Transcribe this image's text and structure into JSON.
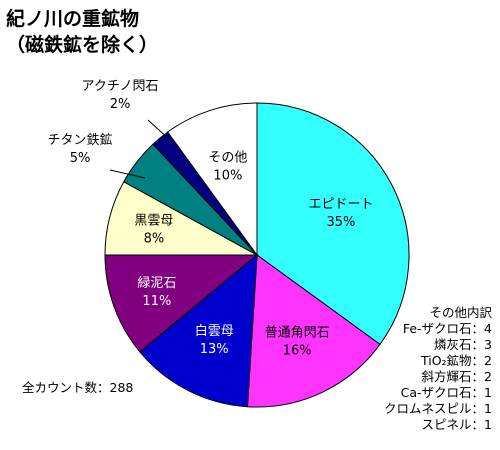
{
  "title_lines": [
    "紀ノ川の重鉱物",
    "（磁鉄鉱を除く）"
  ],
  "chart_data": {
    "type": "pie",
    "title": "紀ノ川の重鉱物（磁鉄鉱を除く）",
    "slices": [
      {
        "label": "エピドート",
        "value": 35,
        "display": "35%",
        "color": "#33ffff"
      },
      {
        "label": "普通角閃石",
        "value": 16,
        "display": "16%",
        "color": "#ff33ff"
      },
      {
        "label": "白雲母",
        "value": 13,
        "display": "13%",
        "color": "#0000cc"
      },
      {
        "label": "緑泥石",
        "value": 11,
        "display": "11%",
        "color": "#800080"
      },
      {
        "label": "黒雲母",
        "value": 8,
        "display": "8%",
        "color": "#ffffcc"
      },
      {
        "label": "チタン鉄鉱",
        "value": 5,
        "display": "5%",
        "color": "#008080"
      },
      {
        "label": "アクチノ閃石",
        "value": 2,
        "display": "2%",
        "color": "#000080"
      },
      {
        "label": "その他",
        "value": 10,
        "display": "10%",
        "color": "#ffffff"
      }
    ]
  },
  "breakdown": {
    "title": "その他内訳",
    "items": [
      "Fe-ザクロ石：4",
      "燐灰石：3",
      "TiO₂鉱物：2",
      "斜方輝石：2",
      "Ca-ザクロ石：1",
      "クロムネスピル：1",
      "スピネル：1"
    ]
  },
  "total_count": "全カウント数：288"
}
